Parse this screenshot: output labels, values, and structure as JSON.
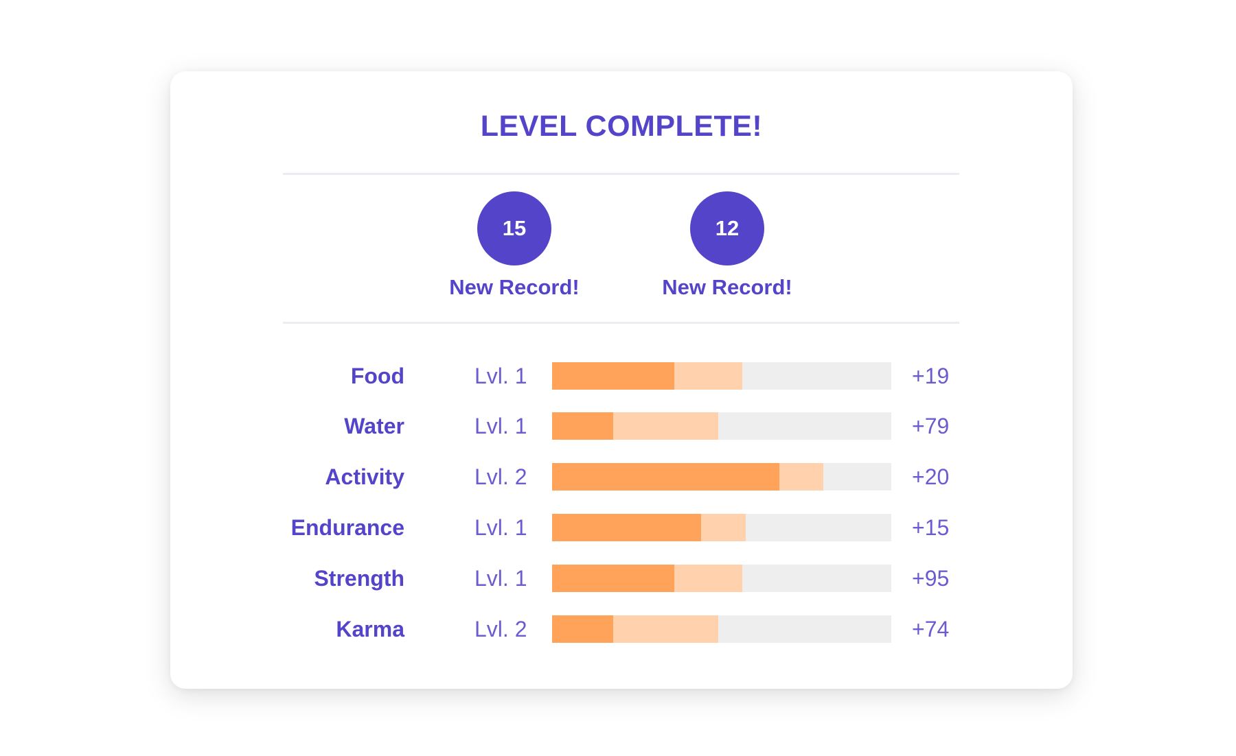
{
  "title": "LEVEL COMPLETE!",
  "records": [
    {
      "value": "15",
      "label": "New Record!"
    },
    {
      "value": "12",
      "label": "New Record!"
    }
  ],
  "stats": [
    {
      "name": "Food",
      "level": "Lvl. 1",
      "gain": "+19",
      "base_fraction": 0.36,
      "gain_fraction": 0.56
    },
    {
      "name": "Water",
      "level": "Lvl. 1",
      "gain": "+79",
      "base_fraction": 0.18,
      "gain_fraction": 0.49
    },
    {
      "name": "Activity",
      "level": "Lvl. 2",
      "gain": "+20",
      "base_fraction": 0.67,
      "gain_fraction": 0.8
    },
    {
      "name": "Endurance",
      "level": "Lvl. 1",
      "gain": "+15",
      "base_fraction": 0.44,
      "gain_fraction": 0.57
    },
    {
      "name": "Strength",
      "level": "Lvl. 1",
      "gain": "+95",
      "base_fraction": 0.36,
      "gain_fraction": 0.56
    },
    {
      "name": "Karma",
      "level": "Lvl. 2",
      "gain": "+74",
      "base_fraction": 0.18,
      "gain_fraction": 0.49
    }
  ],
  "colors": {
    "accent": "#5444c9",
    "bar_base": "#ffa25a",
    "bar_gain": "#ffd1ad",
    "bar_track": "#eeeeee"
  }
}
